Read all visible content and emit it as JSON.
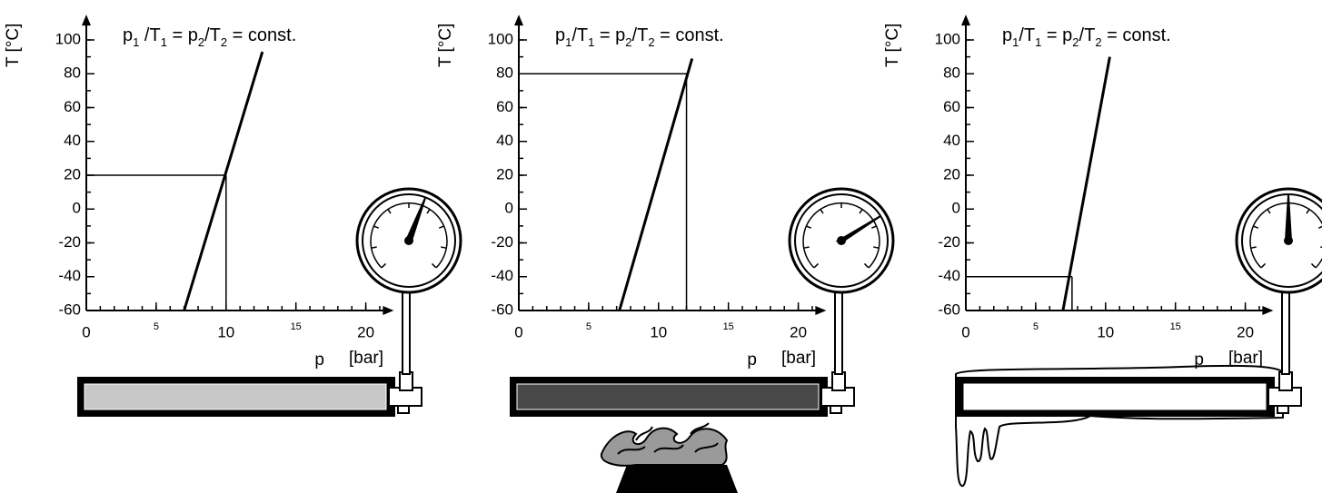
{
  "chart_data": [
    {
      "type": "line",
      "annotation": [
        "p",
        "1",
        " /T",
        "1",
        "  = p",
        "2",
        "/T",
        "2",
        " = const."
      ],
      "x_label": "p",
      "x_unit": "[bar]",
      "y_label": "T [°C]",
      "x": [
        7.0,
        12.6
      ],
      "values": [
        -60,
        93
      ],
      "color": "#000000",
      "marker": {
        "x": 10,
        "y": 20
      },
      "xlim": [
        0,
        22
      ],
      "ylim": [
        -60,
        115
      ],
      "xticks": [
        0,
        5,
        10,
        15,
        20
      ],
      "yticks": [
        -60,
        -40,
        -20,
        0,
        20,
        40,
        60,
        80,
        100
      ],
      "tube_color": "#c8c8c8"
    },
    {
      "type": "line",
      "annotation": [
        "p",
        "1",
        "/T",
        "1",
        " = p",
        "2",
        "/T",
        "2",
        " = const."
      ],
      "x_label": "p",
      "x_unit": "[bar]",
      "y_label": "T [°C]",
      "x": [
        7.2,
        12.4
      ],
      "values": [
        -60,
        89
      ],
      "color": "#000000",
      "marker": {
        "x": 12,
        "y": 80
      },
      "xlim": [
        0,
        22
      ],
      "ylim": [
        -60,
        115
      ],
      "xticks": [
        0,
        5,
        10,
        15,
        20
      ],
      "yticks": [
        -60,
        -40,
        -20,
        0,
        20,
        40,
        60,
        80,
        100
      ],
      "tube_color": "#484848"
    },
    {
      "type": "line",
      "annotation": [
        "p",
        "1",
        "/T",
        "1",
        "  = p",
        "2",
        "/T",
        "2",
        " = const."
      ],
      "x_label": "p",
      "x_unit": "[bar]",
      "y_label": "T [°C]",
      "x": [
        6.95,
        10.3
      ],
      "values": [
        -60,
        90
      ],
      "color": "#000000",
      "marker": {
        "x": 7.6,
        "y": -40
      },
      "xlim": [
        0,
        22
      ],
      "ylim": [
        -60,
        115
      ],
      "xticks": [
        0,
        5,
        10,
        15,
        20
      ],
      "yticks": [
        -60,
        -40,
        -20,
        0,
        20,
        40,
        60,
        80,
        100
      ],
      "tube_color": "#ffffff"
    }
  ]
}
